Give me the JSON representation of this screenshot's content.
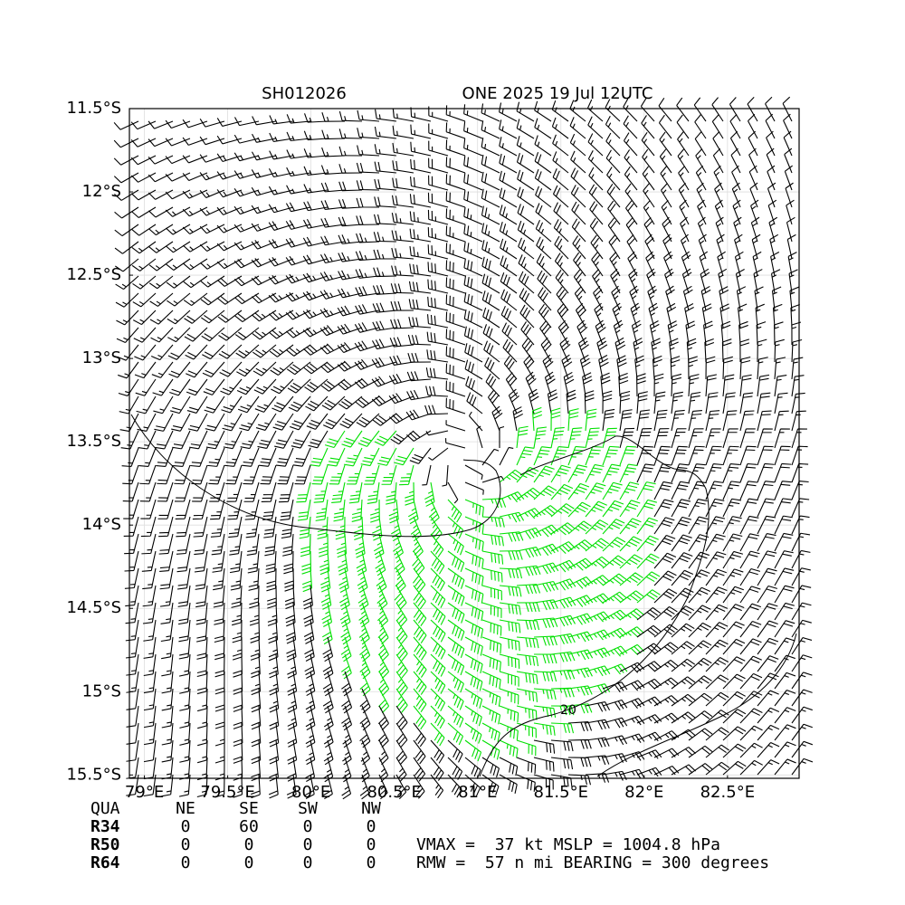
{
  "title_left": "SH012026",
  "title_right": "ONE 2025 19 Jul 12UTC",
  "xlim": [
    78.91,
    82.93
  ],
  "ylim": [
    -11.5,
    -15.52
  ],
  "xticks": [
    {
      "value": 79,
      "label": "79°E"
    },
    {
      "value": 79.5,
      "label": "79.5°E"
    },
    {
      "value": 80,
      "label": "80°E"
    },
    {
      "value": 80.5,
      "label": "80.5°E"
    },
    {
      "value": 81,
      "label": "81°E"
    },
    {
      "value": 81.5,
      "label": "81.5°E"
    },
    {
      "value": 82,
      "label": "82°E"
    },
    {
      "value": 82.5,
      "label": "82.5°E"
    }
  ],
  "yticks": [
    {
      "value": -11.5,
      "label": "11.5°S"
    },
    {
      "value": -12,
      "label": "12°S"
    },
    {
      "value": -12.5,
      "label": "12.5°S"
    },
    {
      "value": -13,
      "label": "13°S"
    },
    {
      "value": -13.5,
      "label": "13.5°S"
    },
    {
      "value": -14,
      "label": "14°S"
    },
    {
      "value": -14.5,
      "label": "14.5°S"
    },
    {
      "value": -15,
      "label": "15°S"
    },
    {
      "value": -15.5,
      "label": "15.5°S"
    }
  ],
  "contour_label": "20",
  "table": {
    "header": [
      "QUA",
      "NE",
      "SE",
      "SW",
      "NW"
    ],
    "rows": [
      [
        "R34",
        "0",
        "60",
        "0",
        "0"
      ],
      [
        "R50",
        "0",
        "0",
        "0",
        "0"
      ],
      [
        "R64",
        "0",
        "0",
        "0",
        "0"
      ]
    ]
  },
  "stats": [
    "VMAX =  37 kt MSLP = 1004.8 hPa",
    "RMW =  57 n mi BEARING = 300 degrees"
  ]
}
